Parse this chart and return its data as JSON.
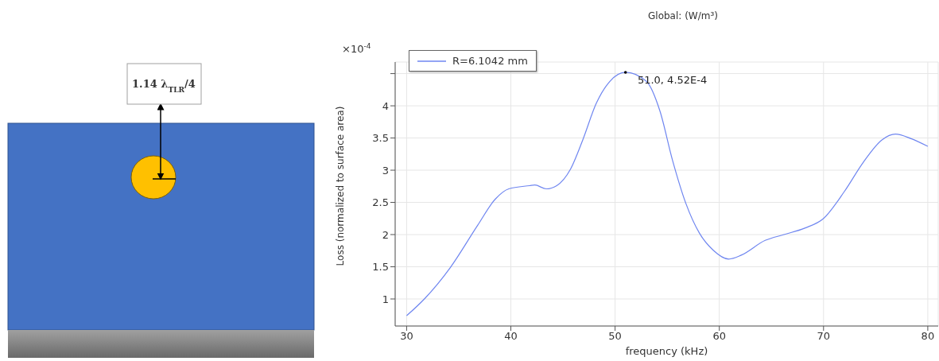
{
  "chart_data": {
    "type": "line",
    "title": "Global:  (W/m³)",
    "xlabel": "frequency (kHz)",
    "ylabel": "Loss (normalized to surface area)",
    "xlim": [
      28.9,
      81
    ],
    "xticks": [
      30,
      40,
      50,
      60,
      70,
      80
    ],
    "ylim": [
      0.58,
      4.68
    ],
    "yticks": [
      1,
      1.5,
      2,
      2.5,
      3,
      3.5,
      4,
      {
        "value": 4.5,
        "label": null
      }
    ],
    "grid": true,
    "legend": "top left",
    "marker": "none",
    "line_style": "solid",
    "series": [
      {
        "name": "R=6.1042 mm",
        "color": "#6f86f0",
        "x": [
          30,
          31.7,
          34.2,
          36.8,
          38.5,
          39.8,
          41.8,
          42.3,
          43.4,
          44.4,
          45.7,
          46.9,
          48.2,
          49.5,
          51.0,
          53.0,
          54.3,
          55.5,
          56.8,
          58.1,
          59.4,
          60.9,
          62.1,
          64.4,
          66.2,
          68.2,
          70.0,
          72.0,
          73.8,
          75.6,
          76.9,
          78.4,
          80.0
        ],
        "values": [
          0.74,
          1.0,
          1.49,
          2.14,
          2.55,
          2.71,
          2.76,
          2.77,
          2.71,
          2.76,
          3.01,
          3.47,
          4.04,
          4.38,
          4.52,
          4.38,
          3.92,
          3.16,
          2.48,
          2.02,
          1.76,
          1.62,
          1.68,
          1.91,
          2.0,
          2.1,
          2.25,
          2.67,
          3.12,
          3.47,
          3.56,
          3.49,
          3.37
        ]
      }
    ],
    "annotations": [
      "×10$^{-4}$",
      {
        "text": "51.0, 4.52E-4",
        "x": 51.0,
        "y": 4.52
      },
      "1.14 λ$_{TLR}$/4"
    ]
  }
}
